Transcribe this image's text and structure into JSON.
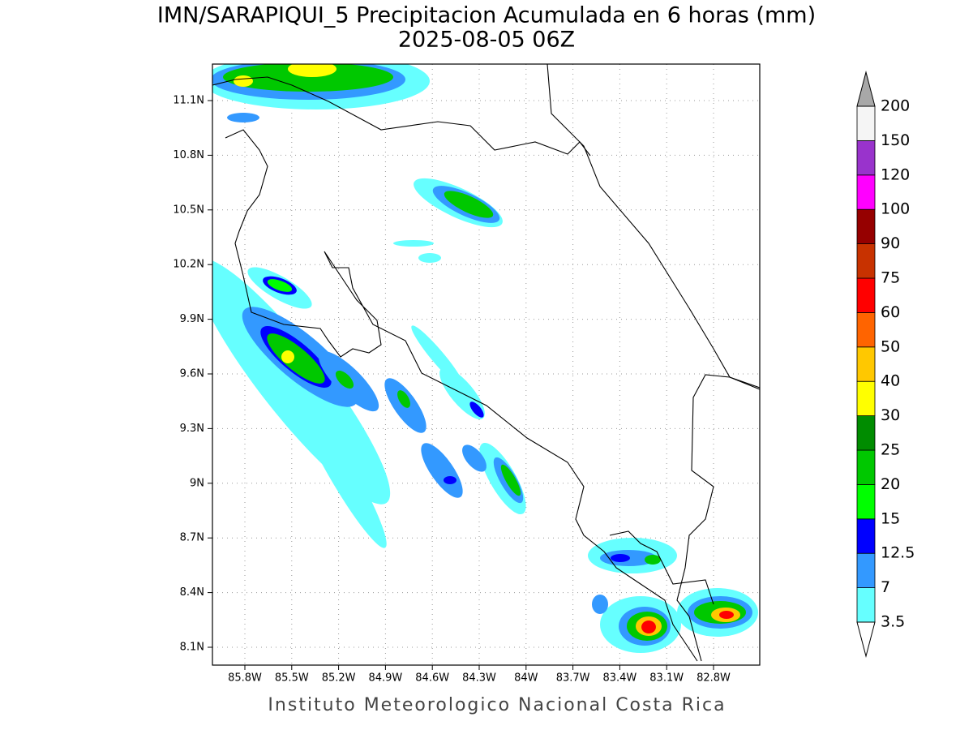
{
  "title": "IMN/SARAPIQUI_5 Precipitacion Acumulada en 6 horas (mm)",
  "subtitle": "2025-08-05 06Z",
  "footer": "Instituto Meteorologico Nacional Costa Rica",
  "map": {
    "lon_ticks": [
      {
        "value": -85.8,
        "label": "85.8W"
      },
      {
        "value": -85.5,
        "label": "85.5W"
      },
      {
        "value": -85.2,
        "label": "85.2W"
      },
      {
        "value": -84.9,
        "label": "84.9W"
      },
      {
        "value": -84.6,
        "label": "84.6W"
      },
      {
        "value": -84.3,
        "label": "84.3W"
      },
      {
        "value": -84,
        "label": "84W"
      },
      {
        "value": -83.7,
        "label": "83.7W"
      },
      {
        "value": -83.4,
        "label": "83.4W"
      },
      {
        "value": -83.1,
        "label": "83.1W"
      },
      {
        "value": -82.8,
        "label": "82.8W"
      }
    ],
    "lat_ticks": [
      {
        "value": 11.1,
        "label": "11.1N"
      },
      {
        "value": 10.8,
        "label": "10.8N"
      },
      {
        "value": 10.5,
        "label": "10.5N"
      },
      {
        "value": 10.2,
        "label": "10.2N"
      },
      {
        "value": 9.9,
        "label": "9.9N"
      },
      {
        "value": 9.6,
        "label": "9.6N"
      },
      {
        "value": 9.3,
        "label": "9.3N"
      },
      {
        "value": 9,
        "label": "9N"
      },
      {
        "value": 8.7,
        "label": "8.7N"
      },
      {
        "value": 8.4,
        "label": "8.4N"
      },
      {
        "value": 8.1,
        "label": "8.1N"
      }
    ],
    "colorbar": {
      "levels": [
        3.5,
        7,
        12.5,
        15,
        20,
        25,
        30,
        40,
        50,
        60,
        75,
        90,
        100,
        120,
        150,
        200
      ],
      "colors": [
        "#66ffff",
        "#3399ff",
        "#0000ff",
        "#00ff00",
        "#00c800",
        "#008c00",
        "#ffff00",
        "#ffc800",
        "#ff6400",
        "#ff0000",
        "#c83200",
        "#960000",
        "#ff00ff",
        "#9933cc",
        "#f5f5f5"
      ],
      "under_color": "#ffffff",
      "over_color": "#a8a8a8"
    }
  }
}
